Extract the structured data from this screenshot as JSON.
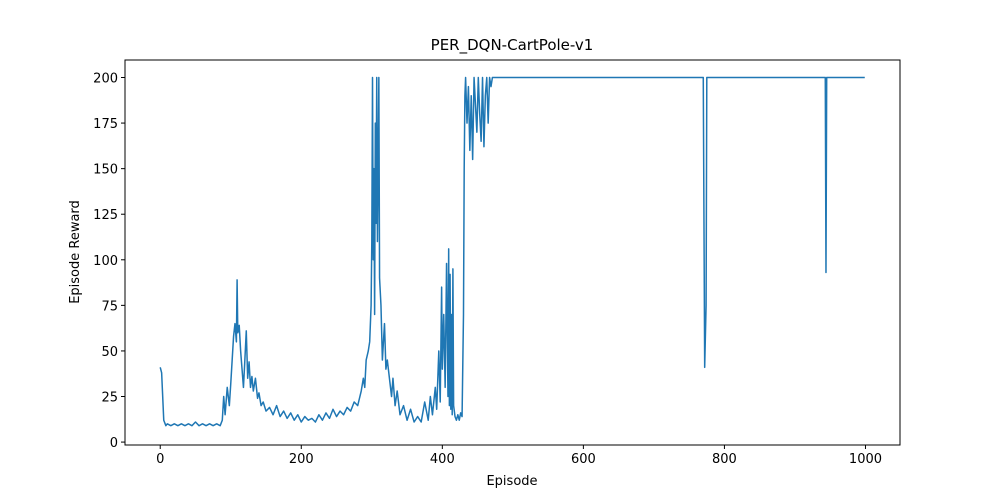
{
  "chart_data": {
    "type": "line",
    "title": "PER_DQN-CartPole-v1",
    "x_label": "Episode",
    "y_label": "Episode Reward",
    "color": "#1f77b4",
    "grid": false,
    "xlim": [
      -49.95,
      1048.95
    ],
    "ylim": [
      -1.6,
      209.6
    ],
    "xticks": [
      0,
      200,
      400,
      600,
      800,
      1000
    ],
    "yticks": [
      0,
      25,
      50,
      75,
      100,
      125,
      150,
      175,
      200
    ],
    "x": [
      0,
      2,
      5,
      8,
      10,
      15,
      20,
      25,
      30,
      35,
      40,
      45,
      50,
      55,
      60,
      65,
      70,
      75,
      80,
      85,
      88,
      90,
      92,
      95,
      98,
      100,
      102,
      104,
      106,
      108,
      109,
      110,
      112,
      114,
      116,
      118,
      120,
      122,
      124,
      126,
      128,
      130,
      132,
      135,
      138,
      140,
      143,
      146,
      150,
      155,
      160,
      165,
      170,
      175,
      180,
      185,
      190,
      195,
      200,
      205,
      210,
      215,
      220,
      225,
      230,
      235,
      240,
      245,
      250,
      255,
      260,
      265,
      270,
      275,
      280,
      285,
      288,
      290,
      292,
      295,
      297,
      299,
      300,
      301,
      302,
      303,
      304,
      305,
      306,
      307,
      308,
      309,
      310,
      311,
      313,
      315,
      318,
      320,
      322,
      325,
      328,
      330,
      333,
      336,
      340,
      345,
      350,
      355,
      360,
      365,
      370,
      375,
      380,
      383,
      386,
      390,
      392,
      395,
      397,
      399,
      400,
      402,
      404,
      406,
      408,
      409,
      410,
      411,
      412,
      413,
      414,
      415,
      416,
      418,
      420,
      422,
      424,
      426,
      428,
      430,
      431,
      432,
      433,
      435,
      437,
      439,
      441,
      443,
      445,
      447,
      449,
      451,
      453,
      455,
      457,
      459,
      461,
      463,
      465,
      467,
      469,
      471,
      770,
      772,
      774,
      775,
      943,
      944,
      945,
      999
    ],
    "values": [
      41,
      38,
      12,
      9,
      10,
      9,
      10,
      9,
      10,
      9,
      10,
      9,
      11,
      9,
      10,
      9,
      10,
      9,
      10,
      9,
      12,
      25,
      15,
      30,
      20,
      32,
      45,
      58,
      65,
      55,
      89,
      60,
      64,
      50,
      40,
      30,
      45,
      61,
      35,
      44,
      30,
      36,
      28,
      35,
      24,
      27,
      20,
      22,
      17,
      19,
      15,
      20,
      14,
      17,
      13,
      16,
      12,
      15,
      11,
      14,
      12,
      13,
      11,
      15,
      12,
      16,
      13,
      18,
      14,
      17,
      15,
      19,
      17,
      22,
      20,
      28,
      35,
      30,
      45,
      50,
      55,
      75,
      110,
      200,
      100,
      150,
      70,
      175,
      120,
      200,
      110,
      150,
      200,
      90,
      75,
      45,
      65,
      40,
      45,
      35,
      25,
      35,
      20,
      28,
      15,
      20,
      12,
      18,
      11,
      14,
      11,
      22,
      12,
      25,
      15,
      30,
      18,
      50,
      22,
      85,
      40,
      70,
      30,
      98,
      25,
      106,
      20,
      92,
      18,
      70,
      15,
      95,
      20,
      14,
      12,
      15,
      12,
      16,
      14,
      70,
      150,
      190,
      200,
      175,
      195,
      160,
      190,
      155,
      200,
      185,
      170,
      200,
      180,
      165,
      200,
      162,
      190,
      200,
      175,
      200,
      195,
      200,
      200,
      41,
      75,
      200,
      200,
      93,
      200,
      200
    ]
  }
}
